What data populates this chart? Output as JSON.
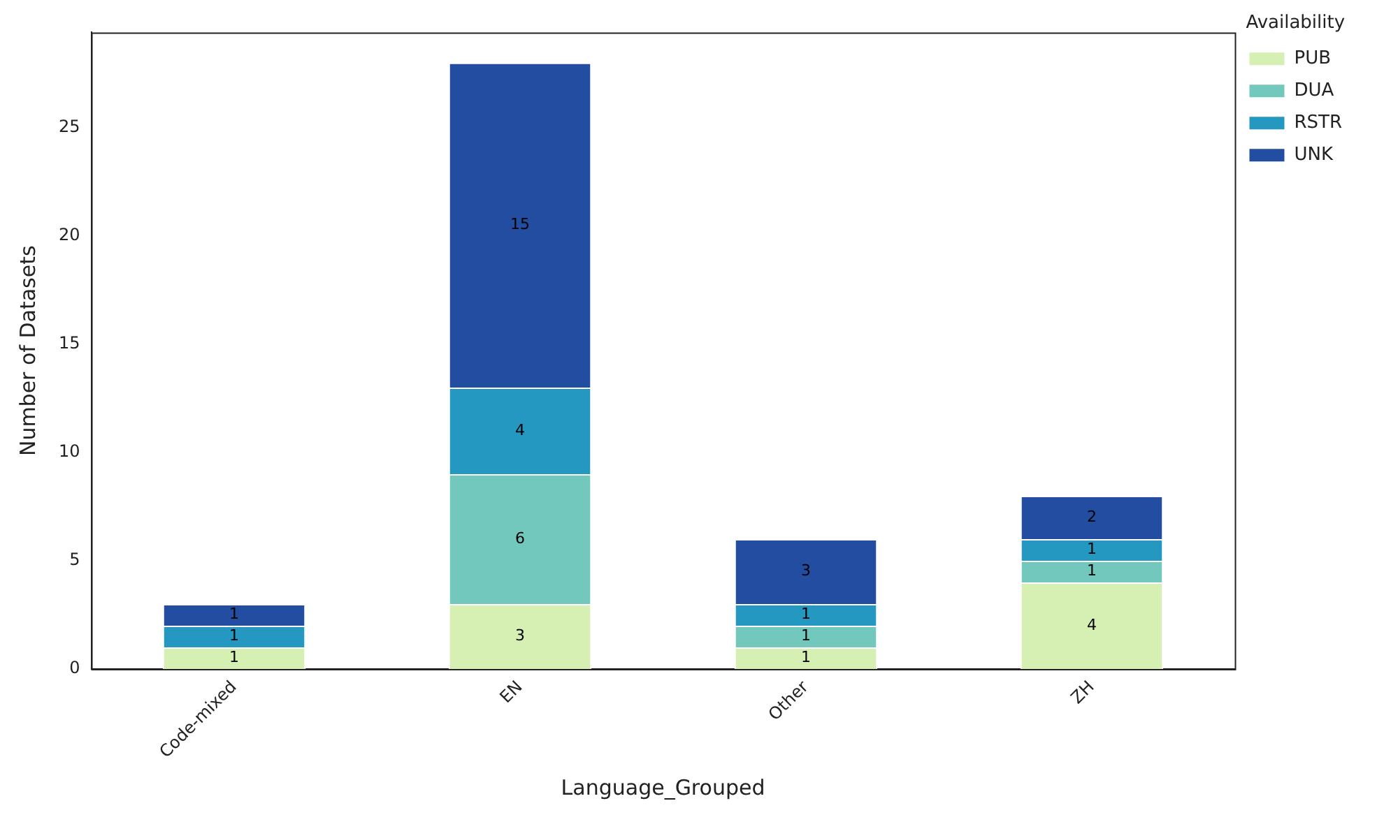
{
  "chart_data": {
    "type": "bar",
    "stacked": true,
    "xlabel": "Language_Grouped",
    "ylabel": "Number of Datasets",
    "legend_title": "Availability",
    "legend": "top right",
    "grid": false,
    "categories": [
      "Code-mixed",
      "EN",
      "Other",
      "ZH"
    ],
    "ylim": [
      0,
      29.4
    ],
    "yticks": [
      0,
      5,
      10,
      15,
      20,
      25
    ],
    "series": [
      {
        "name": "PUB",
        "color": "#d6efb3",
        "values": [
          1,
          3,
          1,
          4
        ],
        "value_labels": [
          "1",
          "3",
          "1",
          "4"
        ]
      },
      {
        "name": "DUA",
        "color": "#73c8bd",
        "values": [
          0,
          6,
          1,
          1
        ],
        "value_labels": [
          null,
          "6",
          "1",
          "1"
        ]
      },
      {
        "name": "RSTR",
        "color": "#2498c1",
        "values": [
          1,
          4,
          1,
          1
        ],
        "value_labels": [
          "1",
          "4",
          "1",
          "1"
        ]
      },
      {
        "name": "UNK",
        "color": "#234da0",
        "values": [
          1,
          15,
          3,
          2
        ],
        "value_labels": [
          "1",
          "15",
          "3",
          "2"
        ]
      }
    ]
  }
}
